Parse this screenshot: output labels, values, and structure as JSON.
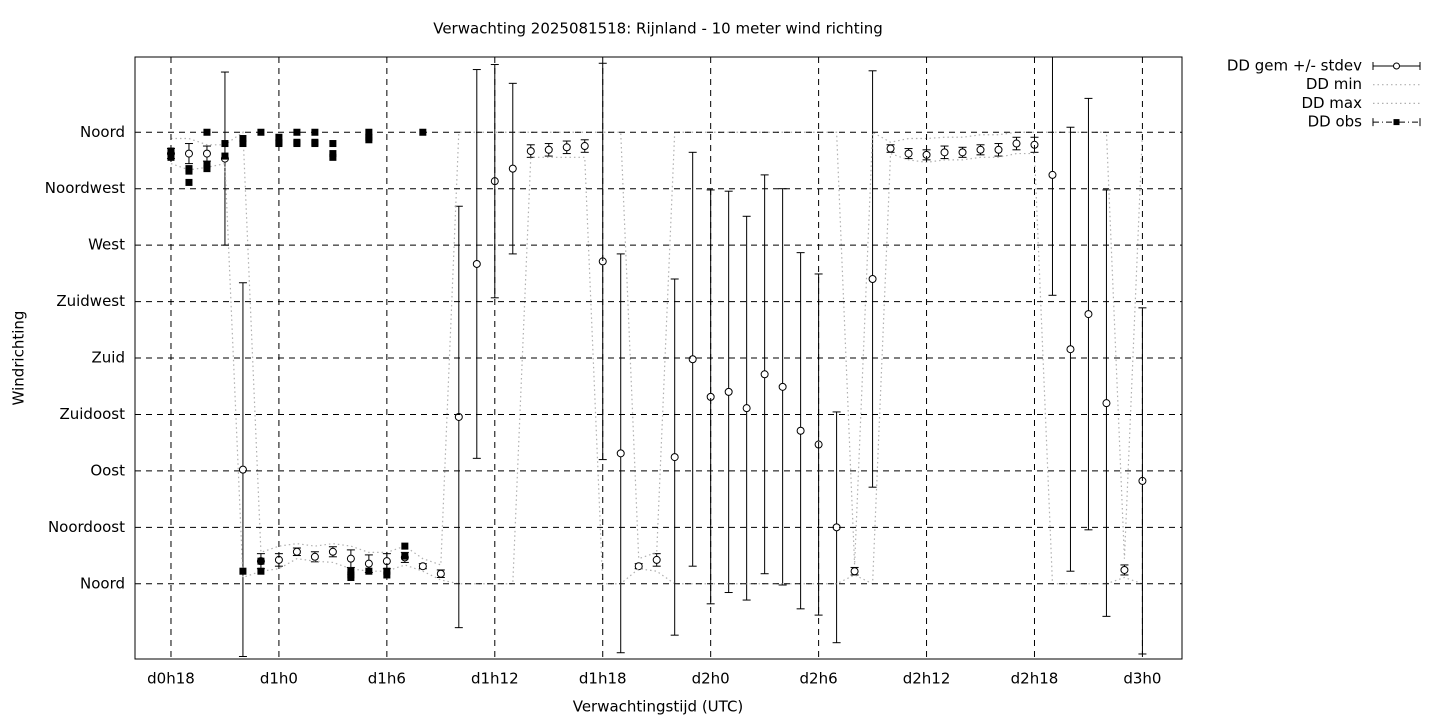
{
  "chart_data": {
    "type": "errorbar",
    "title": "Verwachting 2025081518: Rijnland - 10 meter wind richting",
    "xlabel": "Verwachtingstijd (UTC)",
    "ylabel": "Windrichting",
    "xlim": [
      16,
      74.2
    ],
    "xticks": [
      {
        "value": 18,
        "label": "d0h18"
      },
      {
        "value": 24,
        "label": "d1h0"
      },
      {
        "value": 30,
        "label": "d1h6"
      },
      {
        "value": 36,
        "label": "d1h12"
      },
      {
        "value": 42,
        "label": "d1h18"
      },
      {
        "value": 48,
        "label": "d2h0"
      },
      {
        "value": 54,
        "label": "d2h6"
      },
      {
        "value": 60,
        "label": "d2h12"
      },
      {
        "value": 66,
        "label": "d2h18"
      },
      {
        "value": 72,
        "label": "d3h0"
      }
    ],
    "ylim": [
      -60,
      420
    ],
    "yticks": [
      {
        "value": 0,
        "label": "Noord"
      },
      {
        "value": 45,
        "label": "Noordoost"
      },
      {
        "value": 90,
        "label": "Oost"
      },
      {
        "value": 135,
        "label": "Zuidoost"
      },
      {
        "value": 180,
        "label": "Zuid"
      },
      {
        "value": 225,
        "label": "Zuidwest"
      },
      {
        "value": 270,
        "label": "West"
      },
      {
        "value": 315,
        "label": "Noordwest"
      },
      {
        "value": 360,
        "label": "Noord"
      }
    ],
    "grid": true,
    "legend": "outside-right",
    "x": [
      18,
      19,
      20,
      21,
      22,
      23,
      24,
      25,
      26,
      27,
      28,
      29,
      30,
      31,
      32,
      33,
      34,
      35,
      36,
      37,
      38,
      39,
      40,
      41,
      42,
      43,
      44,
      45,
      46,
      47,
      48,
      49,
      50,
      51,
      52,
      53,
      54,
      55,
      56,
      57,
      58,
      59,
      60,
      61,
      62,
      63,
      64,
      65,
      66,
      67,
      68,
      69,
      70,
      71,
      72
    ],
    "series": [
      {
        "name": "DD gem +/- stdev",
        "style": "errorbar",
        "color": "#000000",
        "values": [
          343,
          343,
          343,
          339,
          91,
          18,
          19,
          25.5,
          21.5,
          25.5,
          20,
          16,
          18,
          21,
          14,
          8,
          133,
          255,
          321,
          331,
          345,
          346,
          348,
          349,
          257,
          104,
          14,
          19,
          101,
          179,
          149,
          153,
          140,
          167,
          157,
          122,
          111,
          45,
          10,
          243,
          347,
          343,
          342,
          344,
          344,
          346,
          346,
          351,
          350,
          326,
          187,
          215,
          144,
          11,
          82
        ],
        "errors": [
          4,
          8,
          6,
          69,
          149,
          6,
          5,
          3,
          4,
          4,
          7,
          7,
          6,
          4,
          2,
          3,
          168,
          155,
          93,
          68,
          5,
          5,
          5,
          5,
          158,
          159,
          2,
          5,
          142,
          165,
          165,
          160,
          153,
          159,
          158,
          142,
          136,
          92,
          3,
          166,
          3,
          4,
          4,
          5,
          4,
          4,
          5,
          5,
          6,
          96,
          177,
          172,
          170,
          4,
          138
        ]
      },
      {
        "name": "DD min",
        "style": "dotted",
        "color": "#b0b0b0",
        "values": [
          335,
          330,
          332,
          335,
          5,
          10,
          12,
          20,
          18,
          17,
          12,
          10,
          10,
          15,
          10,
          3,
          0,
          0,
          0,
          0,
          340,
          340,
          340,
          340,
          0,
          0,
          12,
          10,
          0,
          0,
          0,
          0,
          0,
          0,
          0,
          0,
          0,
          0,
          7,
          0,
          343,
          338,
          336,
          338,
          338,
          340,
          340,
          343,
          343,
          0,
          0,
          0,
          0,
          5,
          0
        ]
      },
      {
        "name": "DD max",
        "style": "dotted",
        "color": "#b0b0b0",
        "values": [
          355,
          355,
          350,
          350,
          360,
          25,
          30,
          32,
          30,
          32,
          30,
          25,
          25,
          30,
          20,
          15,
          360,
          360,
          360,
          360,
          360,
          360,
          360,
          360,
          360,
          360,
          20,
          25,
          360,
          360,
          360,
          360,
          360,
          360,
          360,
          360,
          360,
          360,
          15,
          360,
          352,
          355,
          355,
          356,
          356,
          358,
          358,
          360,
          360,
          360,
          360,
          360,
          360,
          20,
          360
        ]
      },
      {
        "name": "DD obs",
        "style": "points",
        "color": "#000000",
        "x": [
          18,
          18,
          18,
          19,
          19,
          19,
          20,
          20,
          20,
          21,
          21,
          22,
          22,
          22,
          23,
          23,
          23,
          24,
          24,
          24,
          25,
          25,
          25,
          26,
          26,
          26,
          27,
          27,
          27,
          28,
          28,
          28,
          29,
          29,
          29,
          29,
          30,
          30,
          31,
          31,
          32
        ],
        "values": [
          345,
          342,
          340,
          331,
          329,
          320,
          360,
          334,
          331,
          351,
          341,
          355,
          351,
          10,
          360,
          18,
          10,
          356,
          352,
          351,
          360,
          352,
          351,
          360,
          352,
          351,
          351,
          343,
          340,
          10,
          7,
          5,
          360,
          356,
          354,
          10,
          10,
          7,
          30,
          22,
          360
        ]
      }
    ]
  }
}
